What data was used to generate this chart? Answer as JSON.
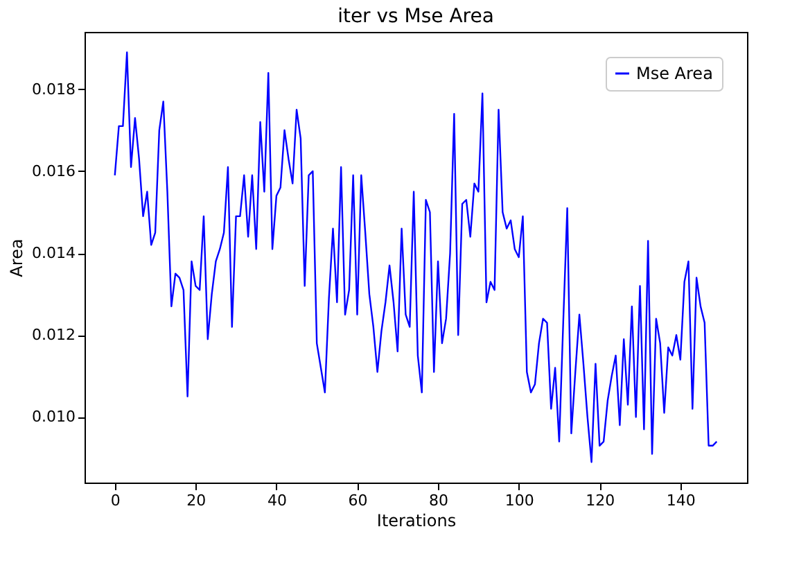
{
  "chart_data": {
    "type": "line",
    "title": "iter vs Mse Area",
    "xlabel": "Iterations",
    "ylabel": "Area",
    "x": [
      0,
      1,
      2,
      3,
      4,
      5,
      6,
      7,
      8,
      9,
      10,
      11,
      12,
      13,
      14,
      15,
      16,
      17,
      18,
      19,
      20,
      21,
      22,
      23,
      24,
      25,
      26,
      27,
      28,
      29,
      30,
      31,
      32,
      33,
      34,
      35,
      36,
      37,
      38,
      39,
      40,
      41,
      42,
      43,
      44,
      45,
      46,
      47,
      48,
      49,
      50,
      51,
      52,
      53,
      54,
      55,
      56,
      57,
      58,
      59,
      60,
      61,
      62,
      63,
      64,
      65,
      66,
      67,
      68,
      69,
      70,
      71,
      72,
      73,
      74,
      75,
      76,
      77,
      78,
      79,
      80,
      81,
      82,
      83,
      84,
      85,
      86,
      87,
      88,
      89,
      90,
      91,
      92,
      93,
      94,
      95,
      96,
      97,
      98,
      99,
      100,
      101,
      102,
      103,
      104,
      105,
      106,
      107,
      108,
      109,
      110,
      111,
      112,
      113,
      114,
      115,
      116,
      117,
      118,
      119,
      120,
      121,
      122,
      123,
      124,
      125,
      126,
      127,
      128,
      129,
      130,
      131,
      132,
      133,
      134,
      135,
      136,
      137,
      138,
      139,
      140,
      141,
      142,
      143,
      144,
      145,
      146,
      147,
      148,
      149
    ],
    "series": [
      {
        "name": "Mse Area",
        "color": "#0000ff",
        "values": [
          0.0159,
          0.0171,
          0.0171,
          0.0189,
          0.0161,
          0.0173,
          0.0163,
          0.0149,
          0.0155,
          0.0142,
          0.0145,
          0.017,
          0.0177,
          0.0155,
          0.0127,
          0.0135,
          0.0134,
          0.0131,
          0.0105,
          0.0138,
          0.0132,
          0.0131,
          0.0149,
          0.0119,
          0.013,
          0.0138,
          0.0141,
          0.0145,
          0.0161,
          0.0122,
          0.0149,
          0.0149,
          0.0159,
          0.0144,
          0.0159,
          0.0141,
          0.0172,
          0.0155,
          0.0184,
          0.0141,
          0.0154,
          0.0156,
          0.017,
          0.0163,
          0.0157,
          0.0175,
          0.0168,
          0.0132,
          0.0159,
          0.016,
          0.0118,
          0.0112,
          0.0106,
          0.0129,
          0.0146,
          0.0128,
          0.0161,
          0.0125,
          0.0131,
          0.0159,
          0.0125,
          0.0159,
          0.0145,
          0.013,
          0.0122,
          0.0111,
          0.0121,
          0.0128,
          0.0137,
          0.0128,
          0.0116,
          0.0146,
          0.0125,
          0.0122,
          0.0155,
          0.0115,
          0.0106,
          0.0153,
          0.015,
          0.0111,
          0.0138,
          0.0118,
          0.0124,
          0.014,
          0.0174,
          0.012,
          0.0152,
          0.0153,
          0.0144,
          0.0157,
          0.0155,
          0.0179,
          0.0128,
          0.0133,
          0.0131,
          0.0175,
          0.015,
          0.0146,
          0.0148,
          0.0141,
          0.0139,
          0.0149,
          0.0111,
          0.0106,
          0.0108,
          0.0118,
          0.0124,
          0.0123,
          0.0102,
          0.0112,
          0.0094,
          0.0123,
          0.0151,
          0.0096,
          0.0111,
          0.0125,
          0.0113,
          0.01,
          0.0089,
          0.0113,
          0.0093,
          0.0094,
          0.0104,
          0.011,
          0.0115,
          0.0098,
          0.0119,
          0.0103,
          0.0127,
          0.01,
          0.0132,
          0.0097,
          0.0143,
          0.0091,
          0.0124,
          0.0118,
          0.0101,
          0.0117,
          0.0115,
          0.012,
          0.0114,
          0.0133,
          0.0138,
          0.0102,
          0.0134,
          0.0127,
          0.0123,
          0.0093,
          0.0093,
          0.0094
        ]
      }
    ],
    "xlim": [
      -7.5,
      156.5
    ],
    "xticks": [
      0,
      20,
      40,
      60,
      80,
      100,
      120,
      140
    ],
    "ylim": [
      0.0084,
      0.0194
    ],
    "yticks": [
      {
        "value": 0.01,
        "label": "0.010"
      },
      {
        "value": 0.012,
        "label": "0.012"
      },
      {
        "value": 0.014,
        "label": "0.014"
      },
      {
        "value": 0.016,
        "label": "0.016"
      },
      {
        "value": 0.018,
        "label": "0.018"
      }
    ],
    "legend": "top right",
    "grid": false,
    "line_style": "solid"
  }
}
